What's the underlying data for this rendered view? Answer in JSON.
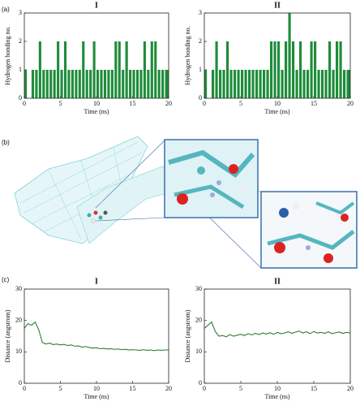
{
  "panel_labels": [
    "(a)",
    "(b)",
    "(c)"
  ],
  "chart_data": [
    {
      "type": "bar",
      "title": "I",
      "xlabel": "Time (ns)",
      "ylabel": "Hydrogen bonding no.",
      "color": "#1e8c3a",
      "x": [
        0,
        0.5,
        1,
        1.5,
        2,
        2.5,
        3,
        3.5,
        4,
        4.5,
        5,
        5.5,
        6,
        6.5,
        7,
        7.5,
        8,
        8.5,
        9,
        9.5,
        10,
        10.5,
        11,
        11.5,
        12,
        12.5,
        13,
        13.5,
        14,
        14.5,
        15,
        15.5,
        16,
        16.5,
        17,
        17.5,
        18,
        18.5,
        19,
        19.5,
        20
      ],
      "values": [
        1,
        0,
        1,
        1,
        2,
        1,
        1,
        1,
        1,
        2,
        1,
        2,
        1,
        1,
        1,
        1,
        2,
        1,
        1,
        2,
        1,
        1,
        1,
        1,
        1,
        2,
        2,
        1,
        2,
        1,
        1,
        1,
        1,
        2,
        1,
        2,
        2,
        1,
        1,
        1,
        1
      ],
      "xlim": [
        0,
        20
      ],
      "xticks": [
        0,
        5,
        10,
        15,
        20
      ],
      "ylim": [
        0,
        3
      ],
      "yticks": [
        0,
        1,
        2,
        3
      ]
    },
    {
      "type": "bar",
      "title": "II",
      "xlabel": "Time (ns)",
      "ylabel": "Hydrogen bonding no.",
      "color": "#1e8c3a",
      "x": [
        0,
        0.5,
        1,
        1.5,
        2,
        2.5,
        3,
        3.5,
        4,
        4.5,
        5,
        5.5,
        6,
        6.5,
        7,
        7.5,
        8,
        8.5,
        9,
        9.5,
        10,
        10.5,
        11,
        11.5,
        12,
        12.5,
        13,
        13.5,
        14,
        14.5,
        15,
        15.5,
        16,
        16.5,
        17,
        17.5,
        18,
        18.5,
        19,
        19.5,
        20
      ],
      "values": [
        1,
        0,
        1,
        2,
        1,
        1,
        2,
        1,
        1,
        1,
        1,
        1,
        1,
        1,
        1,
        1,
        1,
        1,
        2,
        2,
        2,
        1,
        2,
        3,
        2,
        1,
        2,
        1,
        1,
        2,
        2,
        1,
        1,
        1,
        2,
        1,
        2,
        2,
        1,
        1,
        1
      ],
      "xlim": [
        0,
        20
      ],
      "xticks": [
        0,
        5,
        10,
        15,
        20
      ],
      "ylim": [
        0,
        3
      ],
      "yticks": [
        0,
        1,
        2,
        3
      ]
    },
    {
      "type": "line",
      "title": "I",
      "xlabel": "Time (ns)",
      "ylabel": "Distance (angstrom)",
      "color": "#2e7d32",
      "x": [
        0,
        0.5,
        1,
        1.5,
        2,
        2.5,
        3,
        3.5,
        4,
        4.5,
        5,
        5.5,
        6,
        6.5,
        7,
        7.5,
        8,
        8.5,
        9,
        9.5,
        10,
        10.5,
        11,
        11.5,
        12,
        12.5,
        13,
        13.5,
        14,
        14.5,
        15,
        15.5,
        16,
        16.5,
        17,
        17.5,
        18,
        18.5,
        19,
        19.5,
        20
      ],
      "values": [
        17.5,
        19,
        18.5,
        19.5,
        17,
        13,
        12.5,
        12.8,
        12.3,
        12.5,
        12.2,
        12.4,
        12,
        12.2,
        11.8,
        11.9,
        11.5,
        11.7,
        11.4,
        11.2,
        11.3,
        11,
        11.1,
        10.9,
        11,
        10.8,
        10.9,
        10.7,
        10.8,
        10.6,
        10.7,
        10.6,
        10.5,
        10.7,
        10.5,
        10.6,
        10.4,
        10.6,
        10.5,
        10.6,
        10.6
      ],
      "xlim": [
        0,
        20
      ],
      "xticks": [
        0,
        5,
        10,
        15,
        20
      ],
      "ylim": [
        0,
        30
      ],
      "yticks": [
        0,
        10,
        20,
        30
      ]
    },
    {
      "type": "line",
      "title": "II",
      "xlabel": "Time (ns)",
      "ylabel": "Distance (angstrom)",
      "color": "#2e7d32",
      "x": [
        0,
        0.5,
        1,
        1.5,
        2,
        2.5,
        3,
        3.5,
        4,
        4.5,
        5,
        5.5,
        6,
        6.5,
        7,
        7.5,
        8,
        8.5,
        9,
        9.5,
        10,
        10.5,
        11,
        11.5,
        12,
        12.5,
        13,
        13.5,
        14,
        14.5,
        15,
        15.5,
        16,
        16.5,
        17,
        17.5,
        18,
        18.5,
        19,
        19.5,
        20
      ],
      "values": [
        17.5,
        18.5,
        19.5,
        16.5,
        15,
        15.2,
        14.8,
        15.5,
        15,
        15.3,
        15.6,
        15.2,
        15.8,
        15.4,
        15.9,
        15.5,
        16,
        15.7,
        16.1,
        15.6,
        16.2,
        15.8,
        16,
        16.4,
        15.9,
        16.3,
        16.6,
        16,
        16.4,
        15.8,
        16.5,
        16,
        16.2,
        15.9,
        16.4,
        15.8,
        16.1,
        16.3,
        15.9,
        16.2,
        16
      ],
      "xlim": [
        0,
        20
      ],
      "xticks": [
        0,
        5,
        10,
        15,
        20
      ],
      "ylim": [
        0,
        30
      ],
      "yticks": [
        0,
        10,
        20,
        30
      ]
    }
  ]
}
